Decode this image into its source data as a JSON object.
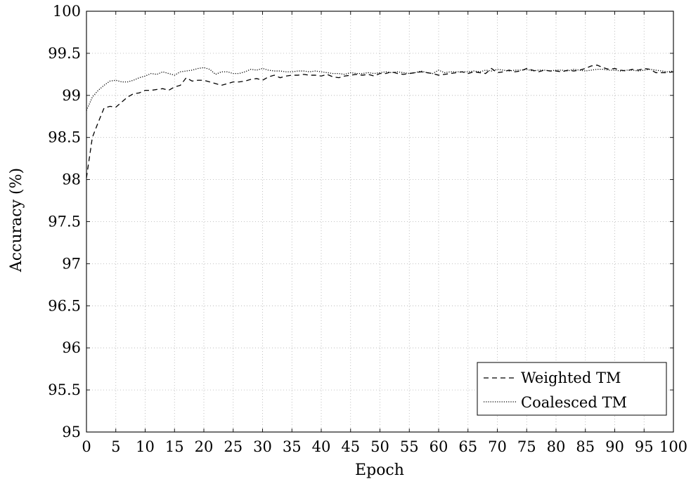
{
  "chart_data": {
    "type": "line",
    "title": "",
    "xlabel": "Epoch",
    "ylabel": "Accuracy (%)",
    "xlim": [
      0,
      100
    ],
    "ylim": [
      95,
      100
    ],
    "xticks": [
      "0",
      "5",
      "10",
      "15",
      "20",
      "25",
      "30",
      "35",
      "40",
      "45",
      "50",
      "55",
      "60",
      "65",
      "70",
      "75",
      "80",
      "85",
      "90",
      "95",
      "100"
    ],
    "yticks": [
      "95",
      "95.5",
      "96",
      "96.5",
      "97",
      "97.5",
      "98",
      "98.5",
      "99",
      "99.5",
      "100"
    ],
    "grid": true,
    "legend_position": "bottom-right",
    "x": [
      0,
      1,
      2,
      3,
      4,
      5,
      6,
      7,
      8,
      9,
      10,
      11,
      12,
      13,
      14,
      15,
      16,
      17,
      18,
      19,
      20,
      21,
      22,
      23,
      24,
      25,
      26,
      27,
      28,
      29,
      30,
      31,
      32,
      33,
      34,
      35,
      36,
      37,
      38,
      39,
      40,
      41,
      42,
      43,
      44,
      45,
      46,
      47,
      48,
      49,
      50,
      51,
      52,
      53,
      54,
      55,
      56,
      57,
      58,
      59,
      60,
      61,
      62,
      63,
      64,
      65,
      66,
      67,
      68,
      69,
      70,
      71,
      72,
      73,
      74,
      75,
      76,
      77,
      78,
      79,
      80,
      81,
      82,
      83,
      84,
      85,
      86,
      87,
      88,
      89,
      90,
      91,
      92,
      93,
      94,
      95,
      96,
      97,
      98,
      99,
      100
    ],
    "series": [
      {
        "name": "Weighted TM",
        "style": "dashed",
        "color": "#000000",
        "values": [
          98.02,
          98.5,
          98.68,
          98.85,
          98.87,
          98.86,
          98.92,
          98.98,
          99.02,
          99.03,
          99.06,
          99.06,
          99.07,
          99.08,
          99.06,
          99.1,
          99.12,
          99.21,
          99.17,
          99.18,
          99.18,
          99.16,
          99.14,
          99.12,
          99.14,
          99.16,
          99.16,
          99.17,
          99.19,
          99.2,
          99.18,
          99.22,
          99.24,
          99.21,
          99.23,
          99.24,
          99.24,
          99.25,
          99.24,
          99.24,
          99.23,
          99.25,
          99.22,
          99.21,
          99.23,
          99.24,
          99.25,
          99.24,
          99.25,
          99.23,
          99.26,
          99.26,
          99.28,
          99.26,
          99.25,
          99.26,
          99.27,
          99.28,
          99.27,
          99.26,
          99.24,
          99.25,
          99.26,
          99.27,
          99.28,
          99.26,
          99.28,
          99.27,
          99.26,
          99.32,
          99.27,
          99.28,
          99.3,
          99.28,
          99.29,
          99.32,
          99.3,
          99.28,
          99.3,
          99.29,
          99.29,
          99.28,
          99.3,
          99.29,
          99.3,
          99.32,
          99.35,
          99.36,
          99.33,
          99.31,
          99.32,
          99.3,
          99.29,
          99.31,
          99.3,
          99.32,
          99.31,
          99.27,
          99.27,
          99.27,
          99.28
        ]
      },
      {
        "name": "Coalesced TM",
        "style": "dotted",
        "color": "#000000",
        "values": [
          98.82,
          98.98,
          99.06,
          99.12,
          99.17,
          99.18,
          99.16,
          99.16,
          99.18,
          99.21,
          99.23,
          99.26,
          99.25,
          99.28,
          99.26,
          99.24,
          99.28,
          99.29,
          99.3,
          99.32,
          99.33,
          99.31,
          99.25,
          99.28,
          99.28,
          99.26,
          99.26,
          99.28,
          99.31,
          99.3,
          99.32,
          99.3,
          99.29,
          99.29,
          99.28,
          99.28,
          99.29,
          99.29,
          99.28,
          99.29,
          99.28,
          99.27,
          99.26,
          99.26,
          99.25,
          99.27,
          99.26,
          99.26,
          99.27,
          99.26,
          99.27,
          99.28,
          99.27,
          99.28,
          99.27,
          99.26,
          99.27,
          99.29,
          99.27,
          99.26,
          99.3,
          99.27,
          99.28,
          99.28,
          99.28,
          99.28,
          99.29,
          99.28,
          99.3,
          99.29,
          99.31,
          99.3,
          99.29,
          99.3,
          99.3,
          99.31,
          99.29,
          99.3,
          99.3,
          99.29,
          99.3,
          99.3,
          99.29,
          99.31,
          99.3,
          99.29,
          99.3,
          99.31,
          99.31,
          99.3,
          99.3,
          99.29,
          99.3,
          99.3,
          99.29,
          99.3,
          99.31,
          99.3,
          99.29,
          99.28,
          99.29
        ]
      }
    ]
  }
}
